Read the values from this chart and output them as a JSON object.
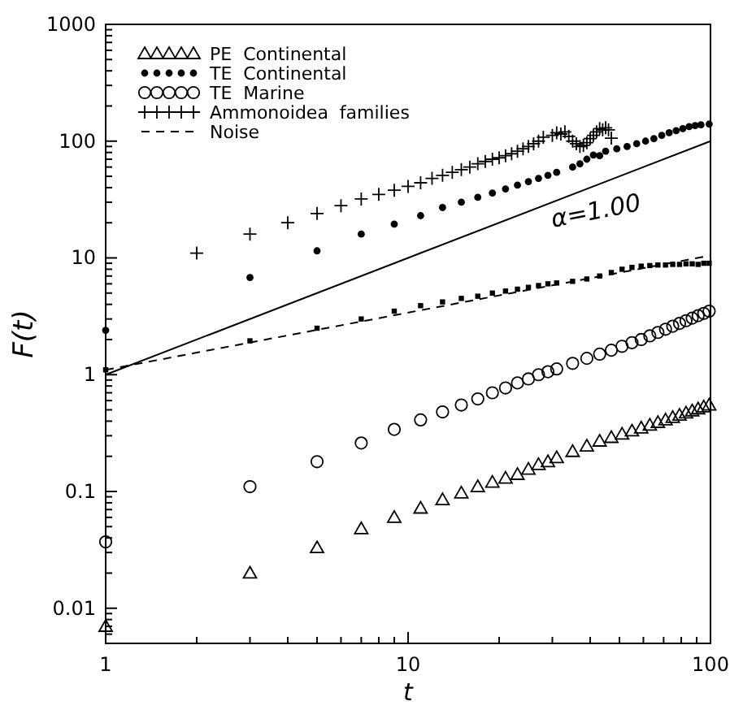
{
  "chart_data": {
    "type": "scatter",
    "xlabel": "t",
    "ylabel": "F(t)",
    "log": "xy",
    "legend": "top left",
    "grid": false,
    "xlim": [
      1,
      100
    ],
    "ylim": [
      0.005,
      1000
    ],
    "xticks": [
      1,
      {
        "value": 2,
        "label": null
      },
      {
        "value": 3,
        "label": null
      },
      {
        "value": 4,
        "label": null
      },
      {
        "value": 5,
        "label": null
      },
      {
        "value": 6,
        "label": null
      },
      {
        "value": 7,
        "label": null
      },
      {
        "value": 8,
        "label": null
      },
      {
        "value": 9,
        "label": null
      },
      10,
      {
        "value": 20,
        "label": null
      },
      {
        "value": 30,
        "label": null
      },
      {
        "value": 40,
        "label": null
      },
      {
        "value": 50,
        "label": null
      },
      {
        "value": 60,
        "label": null
      },
      {
        "value": 70,
        "label": null
      },
      {
        "value": 80,
        "label": null
      },
      {
        "value": 90,
        "label": null
      },
      100
    ],
    "yticks": [
      {
        "value": 0.006,
        "label": null
      },
      {
        "value": 0.007,
        "label": null
      },
      {
        "value": 0.008,
        "label": null
      },
      {
        "value": 0.009,
        "label": null
      },
      0.01,
      {
        "value": 0.02,
        "label": null
      },
      {
        "value": 0.03,
        "label": null
      },
      {
        "value": 0.04,
        "label": null
      },
      {
        "value": 0.05,
        "label": null
      },
      {
        "value": 0.06,
        "label": null
      },
      {
        "value": 0.07,
        "label": null
      },
      {
        "value": 0.08,
        "label": null
      },
      {
        "value": 0.09,
        "label": null
      },
      0.1,
      {
        "value": 0.2,
        "label": null
      },
      {
        "value": 0.3,
        "label": null
      },
      {
        "value": 0.4,
        "label": null
      },
      {
        "value": 0.5,
        "label": null
      },
      {
        "value": 0.6,
        "label": null
      },
      {
        "value": 0.7,
        "label": null
      },
      {
        "value": 0.8,
        "label": null
      },
      {
        "value": 0.9,
        "label": null
      },
      1,
      {
        "value": 2,
        "label": null
      },
      {
        "value": 3,
        "label": null
      },
      {
        "value": 4,
        "label": null
      },
      {
        "value": 5,
        "label": null
      },
      {
        "value": 6,
        "label": null
      },
      {
        "value": 7,
        "label": null
      },
      {
        "value": 8,
        "label": null
      },
      {
        "value": 9,
        "label": null
      },
      10,
      {
        "value": 20,
        "label": null
      },
      {
        "value": 30,
        "label": null
      },
      {
        "value": 40,
        "label": null
      },
      {
        "value": 50,
        "label": null
      },
      {
        "value": 60,
        "label": null
      },
      {
        "value": 70,
        "label": null
      },
      {
        "value": 80,
        "label": null
      },
      {
        "value": 90,
        "label": null
      },
      100,
      {
        "value": 200,
        "label": null
      },
      {
        "value": 300,
        "label": null
      },
      {
        "value": 400,
        "label": null
      },
      {
        "value": 500,
        "label": null
      },
      {
        "value": 600,
        "label": null
      },
      {
        "value": 700,
        "label": null
      },
      {
        "value": 800,
        "label": null
      },
      {
        "value": 900,
        "label": null
      },
      1000
    ],
    "annotations": [
      "α=1.00"
    ],
    "series": [
      {
        "name": "PE  Continental",
        "type": "scatter",
        "marker": "triangle",
        "color": "#000000",
        "x": [
          1,
          3,
          5,
          7,
          9,
          11,
          13,
          15,
          17,
          19,
          21,
          23,
          25,
          27,
          29,
          31,
          35,
          39,
          43,
          47,
          51,
          55,
          59,
          63,
          67,
          71,
          75,
          79,
          83,
          87,
          91,
          95,
          99
        ],
        "values": [
          0.007,
          0.02,
          0.033,
          0.048,
          0.06,
          0.072,
          0.085,
          0.097,
          0.11,
          0.12,
          0.13,
          0.14,
          0.155,
          0.17,
          0.18,
          0.195,
          0.22,
          0.245,
          0.27,
          0.29,
          0.31,
          0.33,
          0.35,
          0.37,
          0.39,
          0.41,
          0.43,
          0.45,
          0.47,
          0.49,
          0.51,
          0.53,
          0.55
        ]
      },
      {
        "name": "TE  Continental",
        "type": "scatter",
        "marker": "dot",
        "color": "#000000",
        "x": [
          1,
          3,
          5,
          7,
          9,
          11,
          13,
          15,
          17,
          19,
          21,
          23,
          25,
          27,
          29,
          31,
          35,
          37,
          39,
          41,
          43,
          45,
          49,
          53,
          57,
          61,
          65,
          69,
          73,
          77,
          81,
          85,
          89,
          93,
          99
        ],
        "values": [
          2.4,
          6.8,
          11.5,
          16,
          19.5,
          23,
          27,
          30,
          33,
          36,
          39,
          42,
          45,
          48,
          51,
          54,
          60,
          64,
          70,
          76,
          75,
          82,
          86,
          90,
          95,
          100,
          105,
          112,
          118,
          123,
          128,
          133,
          136,
          138,
          140
        ]
      },
      {
        "name": "TE  Marine",
        "type": "scatter",
        "marker": "circle",
        "color": "#000000",
        "x": [
          1,
          3,
          5,
          7,
          9,
          11,
          13,
          15,
          17,
          19,
          21,
          23,
          25,
          27,
          29,
          31,
          35,
          39,
          43,
          47,
          51,
          55,
          59,
          63,
          67,
          71,
          75,
          79,
          83,
          87,
          91,
          95,
          99
        ],
        "values": [
          0.037,
          0.11,
          0.18,
          0.26,
          0.34,
          0.41,
          0.48,
          0.55,
          0.62,
          0.7,
          0.77,
          0.85,
          0.92,
          1.0,
          1.06,
          1.12,
          1.25,
          1.38,
          1.5,
          1.62,
          1.75,
          1.88,
          2.0,
          2.15,
          2.3,
          2.45,
          2.6,
          2.75,
          2.9,
          3.05,
          3.2,
          3.35,
          3.5
        ]
      },
      {
        "name": "Ammonoidea  families",
        "type": "scatter",
        "marker": "cross",
        "color": "#000000",
        "x": [
          2,
          3,
          4,
          5,
          6,
          7,
          8,
          9,
          10,
          11,
          12,
          13,
          14,
          15,
          16,
          17,
          18,
          19,
          20,
          21,
          22,
          23,
          24,
          25,
          26,
          27,
          28,
          30,
          31,
          32,
          33,
          34,
          35,
          36,
          37,
          38,
          39,
          40,
          41,
          42,
          43,
          44,
          45,
          46,
          47
        ],
        "values": [
          11,
          16,
          20,
          24,
          28,
          32,
          35,
          38,
          41,
          44,
          48,
          51,
          54,
          57,
          60,
          64,
          67,
          70,
          72,
          75,
          78,
          82,
          86,
          90,
          95,
          100,
          108,
          112,
          118,
          115,
          120,
          110,
          100,
          95,
          90,
          92,
          97,
          105,
          112,
          120,
          128,
          125,
          130,
          125,
          106
        ]
      },
      {
        "name": "Noise",
        "type": "line",
        "line_style": "dashed",
        "color": "#000000",
        "x": [
          1,
          100
        ],
        "values": [
          1.1,
          10.5
        ]
      },
      {
        "type": "scatter",
        "marker": "square",
        "color": "#000000",
        "x": [
          1,
          3,
          5,
          7,
          9,
          11,
          13,
          15,
          17,
          19,
          21,
          23,
          25,
          27,
          29,
          31,
          35,
          39,
          43,
          47,
          51,
          55,
          59,
          63,
          67,
          71,
          75,
          79,
          83,
          87,
          91,
          95,
          99
        ],
        "values": [
          1.1,
          1.95,
          2.5,
          3.0,
          3.5,
          3.9,
          4.2,
          4.5,
          4.7,
          5.0,
          5.2,
          5.4,
          5.6,
          5.8,
          6.0,
          6.1,
          6.3,
          6.6,
          7.0,
          7.5,
          8.0,
          8.3,
          8.5,
          8.6,
          8.7,
          8.7,
          8.8,
          8.8,
          8.9,
          8.9,
          8.8,
          9.0,
          9.0
        ]
      },
      {
        "type": "line",
        "line_style": "solid",
        "color": "#000000",
        "x": [
          1,
          100
        ],
        "values": [
          1,
          100
        ]
      }
    ]
  }
}
